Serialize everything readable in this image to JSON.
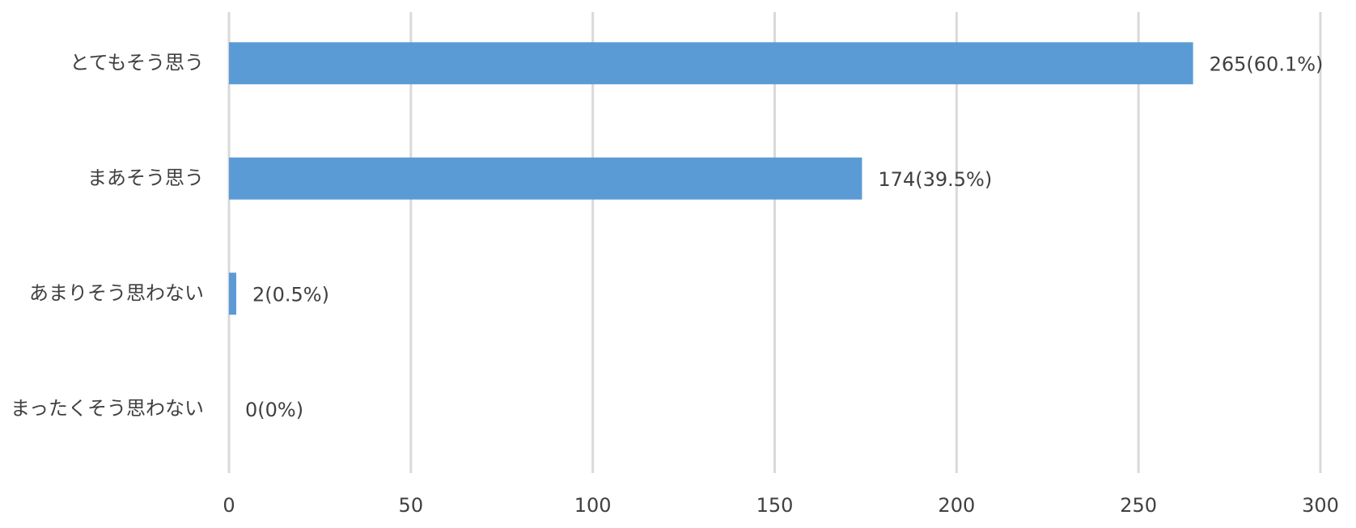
{
  "chart_data": {
    "type": "bar",
    "orientation": "horizontal",
    "categories": [
      "とてもそう思う",
      "まあそう思う",
      "あまりそう思わない",
      "まったくそう思わない"
    ],
    "values": [
      265,
      174,
      2,
      0
    ],
    "value_labels": [
      "265(60.1%)",
      "174(39.5%)",
      "2(0.5%)",
      "0(0%)"
    ],
    "color": "#5b9bd5",
    "xlim": [
      0,
      300
    ],
    "xticks": [
      0,
      50,
      100,
      150,
      200,
      250,
      300
    ],
    "grid": true
  }
}
